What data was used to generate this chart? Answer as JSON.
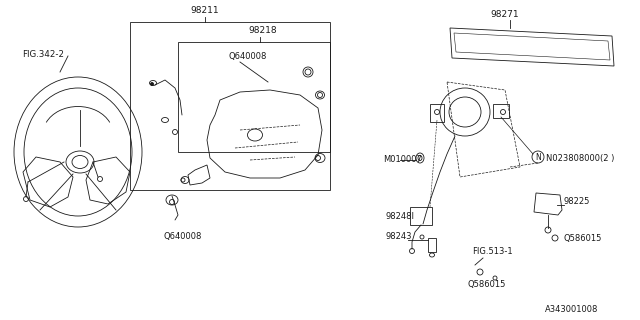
{
  "bg_color": "#ffffff",
  "line_color": "#1a1a1a",
  "labels": {
    "fig342": "FIG.342-2",
    "98211": "98211",
    "98218": "98218",
    "q640008_top": "Q640008",
    "q640008_bot": "Q640008",
    "98271": "98271",
    "m010007": "M010007",
    "n023808000": "N023808000(2 )",
    "98248": "98248I",
    "98243": "98243",
    "98225": "98225",
    "fig513": "FIG.513-1",
    "q586015_bot": "Q586015",
    "q586015_right": "Q586015",
    "a343001008": "A343001008"
  }
}
